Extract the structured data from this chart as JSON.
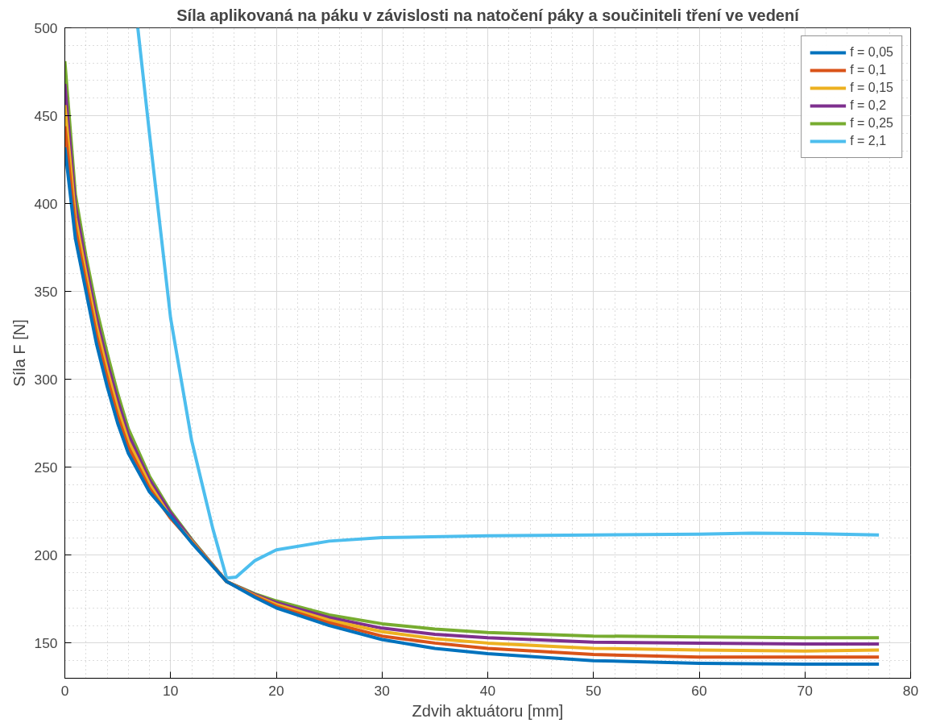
{
  "chart_data": {
    "type": "line",
    "title": "Síla aplikovaná na páku v závislosti na natočení páky a součiniteli tření ve vedení",
    "xlabel": "Zdvih aktuátoru [mm]",
    "ylabel": "Síla F [N]",
    "x": [
      0,
      1,
      2,
      3,
      4,
      5,
      6,
      8,
      10,
      12,
      15.3,
      18,
      20,
      25,
      30,
      35,
      40,
      50,
      60,
      70,
      77
    ],
    "xlim": [
      0,
      80
    ],
    "ylim": [
      130,
      500
    ],
    "xticks": [
      0,
      10,
      20,
      30,
      40,
      50,
      60,
      70,
      80
    ],
    "yticks": [
      150,
      200,
      250,
      300,
      350,
      400,
      450,
      500
    ],
    "grid": true,
    "legend": "top right",
    "line_style": "solid",
    "marker": "none",
    "series": [
      {
        "name": "f = 0,05",
        "color": "#0072bd",
        "values": [
          432,
          380,
          350,
          320,
          296,
          275,
          258,
          236,
          222,
          207,
          185,
          176,
          170,
          160,
          152,
          147,
          144,
          140,
          138.5,
          138,
          138
        ]
      },
      {
        "name": "f = 0,1",
        "color": "#d95319",
        "values": [
          444,
          386,
          355,
          325,
          301,
          279,
          261.5,
          238,
          221,
          207.5,
          185,
          176.5,
          171,
          161.5,
          154,
          150,
          147,
          143.5,
          142,
          142,
          142
        ]
      },
      {
        "name": "f = 0,15",
        "color": "#edb120",
        "values": [
          456,
          392,
          360,
          330,
          305.5,
          283.5,
          265,
          240.5,
          221.5,
          208,
          185,
          177,
          172,
          163,
          156.5,
          152.5,
          150,
          147,
          146,
          145.5,
          146
        ]
      },
      {
        "name": "f = 0,2",
        "color": "#7e2f8e",
        "values": [
          468,
          399,
          365,
          335,
          310,
          288,
          268.5,
          243,
          224,
          208.5,
          185,
          177.5,
          173,
          164.5,
          158.5,
          155,
          153,
          150.5,
          150,
          149.5,
          149.5
        ]
      },
      {
        "name": "f = 0,25",
        "color": "#77ac30",
        "values": [
          481,
          405,
          370,
          340,
          315,
          292,
          272,
          245,
          225,
          209,
          185,
          178,
          174,
          166,
          161,
          158,
          156,
          154,
          153.5,
          153,
          153
        ]
      },
      {
        "name": "f = 2,1",
        "color": "#4dbeee",
        "x": [
          6.9,
          8,
          10,
          12,
          14,
          15.3,
          16.2,
          18,
          20,
          25,
          30,
          40,
          50,
          60,
          65,
          70,
          77
        ],
        "values": [
          500,
          440,
          335,
          265,
          215,
          187,
          187.5,
          197,
          203,
          208,
          210,
          211,
          211.5,
          212,
          212.5,
          212.3,
          211.5
        ]
      }
    ]
  }
}
